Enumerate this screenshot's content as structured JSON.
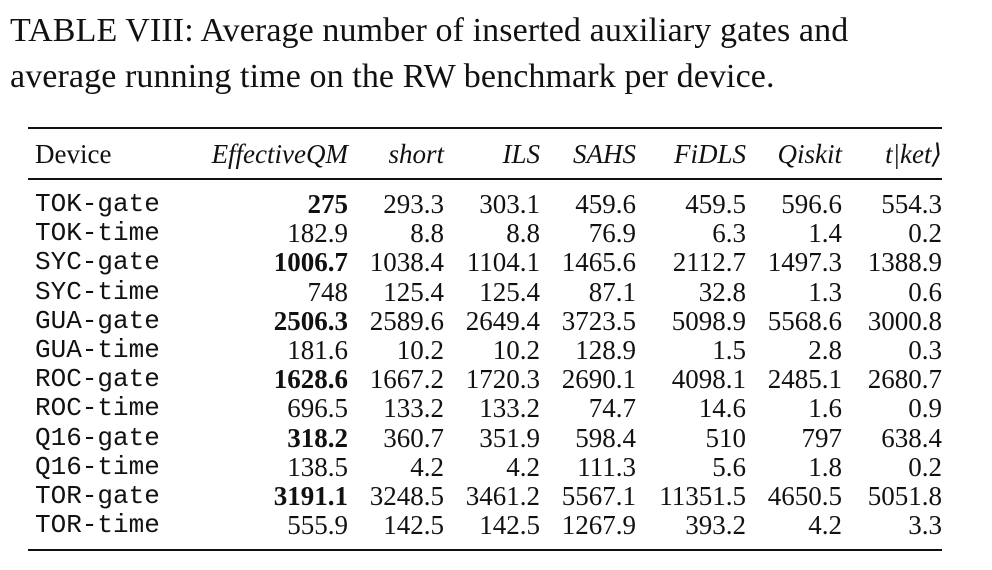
{
  "caption": {
    "line1": "TABLE VIII: Average number of inserted auxiliary gates and",
    "line2": "average running time on the RW benchmark per device."
  },
  "table": {
    "headers": [
      "Device",
      "EffectiveQM",
      "short",
      "ILS",
      "SAHS",
      "FiDLS",
      "Qiskit",
      "t|ket⟩"
    ],
    "best_column": 1,
    "best_rows": [
      0,
      2,
      4,
      6,
      8,
      10
    ],
    "rows": [
      [
        "TOK-gate",
        "275",
        "293.3",
        "303.1",
        "459.6",
        "459.5",
        "596.6",
        "554.3"
      ],
      [
        "TOK-time",
        "182.9",
        "8.8",
        "8.8",
        "76.9",
        "6.3",
        "1.4",
        "0.2"
      ],
      [
        "SYC-gate",
        "1006.7",
        "1038.4",
        "1104.1",
        "1465.6",
        "2112.7",
        "1497.3",
        "1388.9"
      ],
      [
        "SYC-time",
        "748",
        "125.4",
        "125.4",
        "87.1",
        "32.8",
        "1.3",
        "0.6"
      ],
      [
        "GUA-gate",
        "2506.3",
        "2589.6",
        "2649.4",
        "3723.5",
        "5098.9",
        "5568.6",
        "3000.8"
      ],
      [
        "GUA-time",
        "181.6",
        "10.2",
        "10.2",
        "128.9",
        "1.5",
        "2.8",
        "0.3"
      ],
      [
        "ROC-gate",
        "1628.6",
        "1667.2",
        "1720.3",
        "2690.1",
        "4098.1",
        "2485.1",
        "2680.7"
      ],
      [
        "ROC-time",
        "696.5",
        "133.2",
        "133.2",
        "74.7",
        "14.6",
        "1.6",
        "0.9"
      ],
      [
        "Q16-gate",
        "318.2",
        "360.7",
        "351.9",
        "598.4",
        "510",
        "797",
        "638.4"
      ],
      [
        "Q16-time",
        "138.5",
        "4.2",
        "4.2",
        "111.3",
        "5.6",
        "1.8",
        "0.2"
      ],
      [
        "TOR-gate",
        "3191.1",
        "3248.5",
        "3461.2",
        "5567.1",
        "11351.5",
        "4650.5",
        "5051.8"
      ],
      [
        "TOR-time",
        "555.9",
        "142.5",
        "142.5",
        "1267.9",
        "393.2",
        "4.2",
        "3.3"
      ]
    ]
  }
}
